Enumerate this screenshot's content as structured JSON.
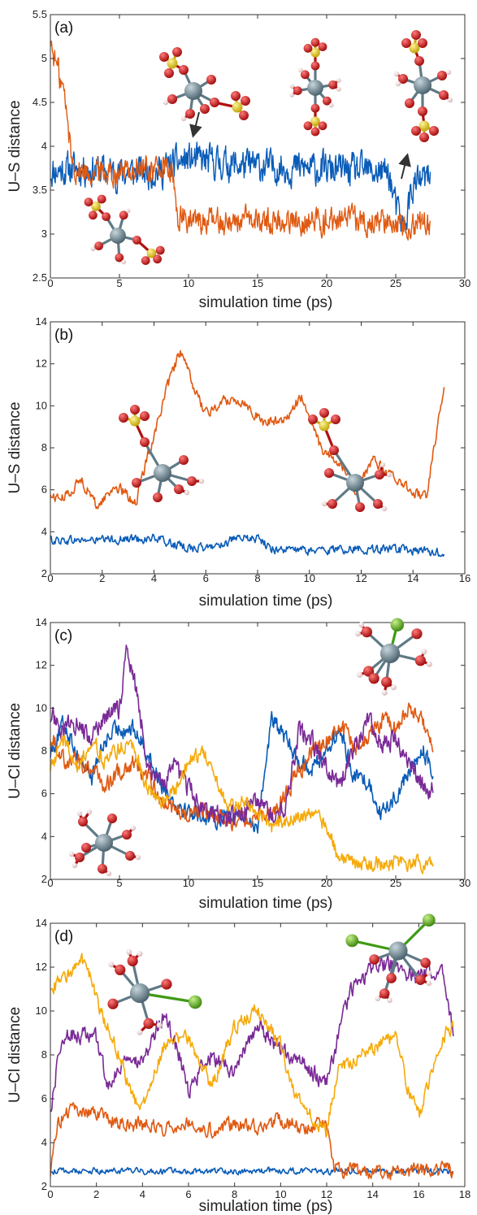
{
  "colors": {
    "blue": "#0a5cb8",
    "orange": "#e05a12",
    "purple": "#7a2a96",
    "yellow": "#f5aa0a",
    "uranium": "#6f8b96",
    "oxygen": "#d41414",
    "sulfur": "#e8cc10",
    "hydrogen": "#f2d8d8",
    "chlorine": "#6fbf22"
  },
  "molecule_icons": [
    "uranyl-sulfate-complex-icon",
    "uranium-chloride-complex-icon",
    "hydrated-uranium-icon"
  ],
  "chart_data": [
    {
      "type": "line",
      "panel_label": "(a)",
      "xlabel": "simulation time (ps)",
      "ylabel": "U–S distance",
      "xlim": [
        0,
        30
      ],
      "ylim": [
        2.5,
        5.5
      ],
      "xticks": [
        "0",
        "5",
        "10",
        "15",
        "20",
        "25",
        "30"
      ],
      "yticks": [
        "2.5",
        "3",
        "3.5",
        "4",
        "4.5",
        "5",
        "5.5"
      ],
      "grid": false,
      "series": [
        {
          "color": "blue",
          "noise": 0.16,
          "x": [
            0,
            2,
            5,
            8,
            9,
            10,
            14,
            18,
            22,
            24.5,
            25,
            25.6,
            26.2,
            27.5
          ],
          "y": [
            3.72,
            3.75,
            3.7,
            3.72,
            3.8,
            3.85,
            3.78,
            3.75,
            3.72,
            3.7,
            3.3,
            3.05,
            3.55,
            3.65
          ]
        },
        {
          "color": "orange",
          "noise": 0.13,
          "x": [
            0,
            0.3,
            0.5,
            1,
            1.3,
            1.6,
            2,
            3,
            5,
            8,
            8.8,
            9.2,
            10,
            15,
            20,
            25,
            27.5
          ],
          "y": [
            5.2,
            5.0,
            4.9,
            4.6,
            4.2,
            3.8,
            3.72,
            3.72,
            3.72,
            3.75,
            3.7,
            3.2,
            3.15,
            3.15,
            3.15,
            3.15,
            3.12
          ]
        }
      ]
    },
    {
      "type": "line",
      "panel_label": "(b)",
      "xlabel": "simulation time (ps)",
      "ylabel": "U–S distance",
      "xlim": [
        0,
        16
      ],
      "ylim": [
        2,
        14
      ],
      "xticks": [
        "0",
        "2",
        "4",
        "6",
        "8",
        "10",
        "12",
        "14",
        "16"
      ],
      "yticks": [
        "2",
        "4",
        "6",
        "8",
        "10",
        "12",
        "14"
      ],
      "grid": false,
      "series": [
        {
          "color": "blue",
          "noise": 0.18,
          "x": [
            0,
            2,
            4,
            5,
            6,
            7,
            8,
            8.5,
            10,
            12,
            14,
            15.2
          ],
          "y": [
            3.6,
            3.6,
            3.7,
            3.3,
            3.2,
            3.6,
            3.7,
            3.2,
            3.1,
            3.2,
            3.1,
            3.0
          ]
        },
        {
          "color": "orange",
          "noise": 0.22,
          "x": [
            0,
            0.5,
            1.2,
            1.8,
            2.5,
            3.3,
            3.8,
            4.5,
            5.0,
            5.5,
            6.0,
            6.8,
            7.5,
            8.2,
            9.0,
            9.7,
            10.5,
            11.2,
            11.8,
            12.5,
            13.0,
            13.7,
            14.5,
            15.2
          ],
          "y": [
            5.7,
            5.6,
            6.5,
            5.2,
            6.2,
            5.4,
            7.8,
            10.8,
            12.6,
            11.0,
            9.6,
            10.3,
            10.2,
            9.2,
            9.3,
            10.4,
            7.8,
            7.3,
            6.0,
            7.4,
            6.8,
            6.2,
            5.6,
            11.0
          ]
        }
      ]
    },
    {
      "type": "line",
      "panel_label": "(c)",
      "xlabel": "simulation time (ps)",
      "ylabel": "U–Cl distance",
      "xlim": [
        0,
        30
      ],
      "ylim": [
        2,
        14
      ],
      "xticks": [
        "0",
        "5",
        "10",
        "15",
        "20",
        "25",
        "30"
      ],
      "yticks": [
        "2",
        "4",
        "6",
        "8",
        "10",
        "12",
        "14"
      ],
      "grid": false,
      "series": [
        {
          "color": "blue",
          "noise": 0.35,
          "x": [
            0,
            1,
            2,
            3,
            4,
            5,
            6,
            7,
            8,
            9,
            10,
            11,
            12,
            13,
            14,
            15,
            16,
            17,
            18,
            19,
            20,
            21,
            22,
            23,
            24,
            25,
            26,
            27,
            27.7
          ],
          "y": [
            8,
            9.3,
            7.8,
            6.8,
            8.5,
            9.1,
            9.0,
            8.0,
            6.5,
            5.6,
            5.2,
            5.0,
            4.8,
            5.2,
            4.8,
            4.5,
            9.5,
            8.6,
            7.5,
            7.2,
            8.1,
            8.9,
            6.8,
            6.6,
            5.0,
            5.9,
            7.1,
            8.0,
            6.9
          ]
        },
        {
          "color": "orange",
          "noise": 0.35,
          "x": [
            0,
            1,
            2,
            3,
            4,
            5,
            6,
            7,
            8,
            9,
            10,
            11,
            12,
            13,
            14,
            15,
            16,
            17,
            18,
            19,
            20,
            21,
            22,
            23,
            24,
            25,
            26,
            27,
            27.7
          ],
          "y": [
            8.8,
            7.6,
            7.5,
            7.2,
            6.3,
            7.0,
            7.5,
            6.8,
            5.8,
            5.2,
            5.0,
            5.1,
            4.9,
            4.7,
            4.8,
            5.0,
            5.0,
            6.0,
            7.0,
            8.0,
            8.5,
            9.2,
            8.1,
            8.7,
            9.4,
            9.0,
            10.2,
            9.3,
            8.0
          ]
        },
        {
          "color": "purple",
          "noise": 0.4,
          "x": [
            0,
            1,
            2,
            3,
            4,
            5,
            5.5,
            6,
            6.5,
            7,
            8,
            9,
            10,
            11,
            12,
            13,
            14,
            15,
            16,
            17,
            18,
            19,
            20,
            21,
            22,
            23,
            24,
            25,
            26,
            27,
            27.7
          ],
          "y": [
            9.7,
            9.0,
            9.3,
            8.5,
            9.6,
            10.0,
            12.6,
            11.5,
            9.8,
            7.5,
            6.3,
            7.2,
            6.3,
            5.3,
            5.0,
            4.9,
            5.2,
            5.5,
            5.0,
            5.3,
            9.0,
            8.4,
            7.3,
            6.3,
            8.2,
            9.5,
            8.4,
            8.5,
            7.5,
            6.3,
            6.1
          ]
        },
        {
          "color": "yellow",
          "noise": 0.3,
          "x": [
            0,
            1,
            2,
            3,
            4,
            5,
            6,
            7,
            8,
            9,
            10,
            11,
            12,
            13,
            14,
            15,
            16,
            17,
            18,
            19,
            20,
            20.5,
            21,
            23,
            25,
            27.7
          ],
          "y": [
            7.3,
            8.6,
            7.1,
            8.6,
            7.4,
            8.2,
            8.4,
            6.2,
            5.6,
            6.2,
            7.5,
            8.1,
            6.5,
            5.3,
            5.6,
            5.3,
            4.4,
            4.8,
            5.0,
            4.9,
            4.6,
            3.6,
            2.8,
            2.75,
            2.75,
            2.75
          ]
        }
      ]
    },
    {
      "type": "line",
      "panel_label": "(d)",
      "xlabel": "simulation time (ps)",
      "ylabel": "U–Cl distance",
      "xlim": [
        0,
        18
      ],
      "ylim": [
        2,
        14
      ],
      "xticks": [
        "0",
        "2",
        "4",
        "6",
        "8",
        "10",
        "12",
        "14",
        "16",
        "18"
      ],
      "yticks": [
        "2",
        "4",
        "6",
        "8",
        "10",
        "12",
        "14"
      ],
      "grid": false,
      "series": [
        {
          "color": "blue",
          "noise": 0.12,
          "x": [
            0,
            4,
            8,
            12,
            16,
            17.5
          ],
          "y": [
            2.7,
            2.7,
            2.7,
            2.7,
            2.7,
            2.7
          ]
        },
        {
          "color": "orange",
          "noise": 0.3,
          "x": [
            0,
            0.3,
            1,
            2,
            3,
            4,
            5,
            6,
            7,
            8,
            9,
            10,
            11,
            12,
            12.3,
            13,
            15,
            17.5
          ],
          "y": [
            2.5,
            5.0,
            5.5,
            5.3,
            4.9,
            4.8,
            4.7,
            5.0,
            4.6,
            4.9,
            4.8,
            5.0,
            4.7,
            4.8,
            2.8,
            2.7,
            2.7,
            2.7
          ]
        },
        {
          "color": "purple",
          "noise": 0.35,
          "x": [
            0,
            0.5,
            1,
            2,
            2.5,
            3,
            4,
            5,
            6,
            7,
            8,
            9,
            10,
            11,
            12,
            13,
            14,
            15,
            16,
            17,
            17.5
          ],
          "y": [
            5.5,
            8.8,
            9.0,
            8.7,
            6.5,
            7.4,
            7.8,
            10.0,
            6.5,
            8.0,
            7.2,
            9.4,
            8.2,
            7.5,
            6.8,
            10.8,
            12.0,
            12.2,
            11.4,
            12.1,
            9.0
          ]
        },
        {
          "color": "yellow",
          "noise": 0.3,
          "x": [
            0,
            0.5,
            1,
            1.5,
            2,
            3,
            3.5,
            4,
            5,
            5.5,
            6,
            7,
            8,
            9,
            10,
            10.5,
            11,
            11.5,
            12,
            12.5,
            13,
            14,
            15,
            15.5,
            16,
            17,
            17.5
          ],
          "y": [
            11.0,
            11.4,
            11.9,
            12.3,
            10.5,
            8.0,
            6.2,
            5.6,
            8.5,
            8.9,
            8.7,
            6.6,
            9.3,
            10.1,
            8.4,
            6.5,
            5.8,
            4.9,
            4.5,
            7.4,
            7.6,
            8.3,
            8.9,
            6.5,
            5.2,
            8.7,
            9.3
          ]
        }
      ]
    }
  ]
}
